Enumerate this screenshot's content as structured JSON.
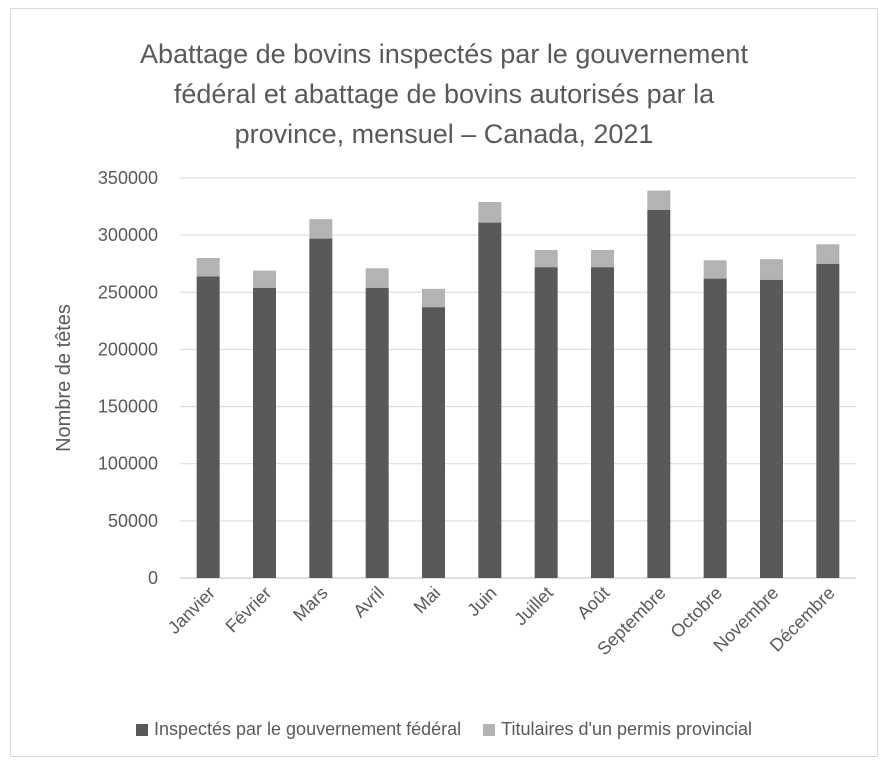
{
  "chart_data": {
    "type": "bar",
    "stacked": true,
    "title_lines": [
      "Abattage de bovins inspectés par le gouvernement",
      "fédéral et abattage de bovins autorisés par la",
      "province, mensuel – Canada, 2021"
    ],
    "xlabel": "",
    "ylabel": "Nombre de têtes",
    "ylim": [
      0,
      350000
    ],
    "yticks": [
      0,
      50000,
      100000,
      150000,
      200000,
      250000,
      300000,
      350000
    ],
    "ytick_labels": [
      "0",
      "50000",
      "100000",
      "150000",
      "200000",
      "250000",
      "300000",
      "350000"
    ],
    "grid": true,
    "legend_position": "bottom",
    "categories": [
      "Janvier",
      "Février",
      "Mars",
      "Avril",
      "Mai",
      "Juin",
      "Juillet",
      "Août",
      "Septembre",
      "Octobre",
      "Novembre",
      "Décembre"
    ],
    "series": [
      {
        "name": "Inspectés par le gouvernement fédéral",
        "color": "#595959",
        "values": [
          264000,
          254000,
          297000,
          254000,
          237000,
          311000,
          272000,
          272000,
          322000,
          262000,
          261000,
          275000
        ]
      },
      {
        "name": "Titulaires d'un permis provincial",
        "color": "#b3b3b3",
        "values": [
          16000,
          15000,
          17000,
          17000,
          16000,
          18000,
          15000,
          15000,
          17000,
          16000,
          18000,
          17000
        ]
      }
    ]
  }
}
